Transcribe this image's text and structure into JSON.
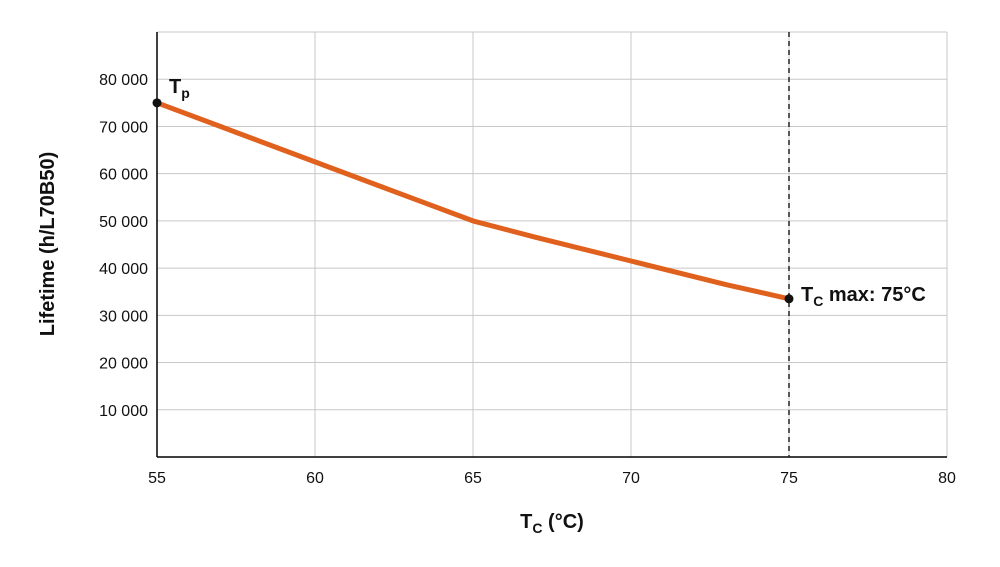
{
  "chart_data": {
    "type": "line",
    "xlabel_main": "T",
    "xlabel_sub": "C",
    "xlabel_rest": " (°C)",
    "ylabel": "Lifetime (h/L70B50)",
    "xlim": [
      55,
      80
    ],
    "ylim": [
      0,
      90000
    ],
    "x_ticks": [
      55,
      60,
      65,
      70,
      75,
      80
    ],
    "x_tick_labels": [
      "55",
      "60",
      "65",
      "70",
      "75",
      "80"
    ],
    "y_ticks": [
      10000,
      20000,
      30000,
      40000,
      50000,
      60000,
      70000,
      80000
    ],
    "y_tick_labels": [
      "10 000",
      "20 000",
      "30 000",
      "40 000",
      "50 000",
      "60 000",
      "70 000",
      "80 000"
    ],
    "grid": true,
    "series": [
      {
        "color": "#e0601e",
        "x": [
          55,
          57,
          60,
          63,
          65,
          67,
          70,
          73,
          75
        ],
        "y": [
          75000,
          70000,
          62500,
          55000,
          50000,
          46500,
          41500,
          36500,
          33500
        ]
      }
    ],
    "reference_line": {
      "x": 75,
      "style": "dashed"
    },
    "annotations": [
      {
        "x": 55,
        "y": 75000,
        "main": "T",
        "sub": "p",
        "rest": ""
      },
      {
        "x": 75,
        "y": 33500,
        "main": "T",
        "sub": "C",
        "rest": " max: 75°C"
      }
    ]
  }
}
